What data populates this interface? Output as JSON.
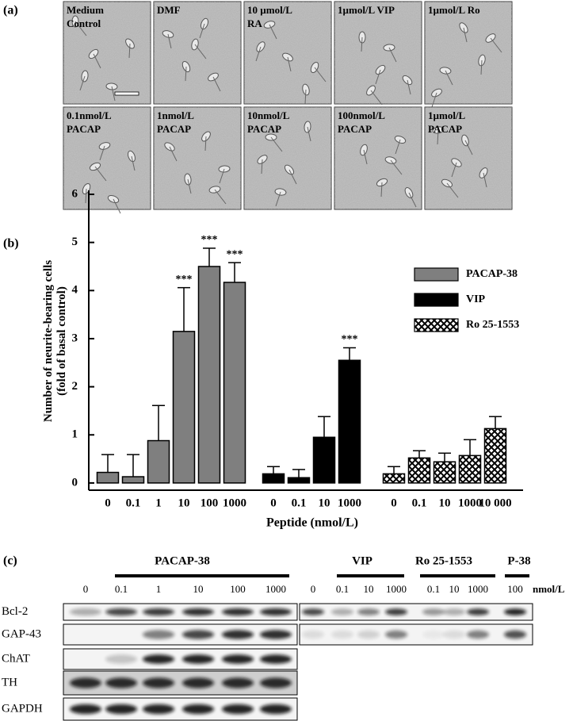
{
  "panel_a": {
    "label": "(a)",
    "tiles": [
      {
        "lines": [
          "Medium",
          "Control"
        ]
      },
      {
        "lines": [
          "DMF"
        ]
      },
      {
        "lines": [
          "10 µmol/L",
          "RA"
        ]
      },
      {
        "lines": [
          "1µmol/L VIP"
        ]
      },
      {
        "lines": [
          "1µmol/L Ro"
        ]
      },
      {
        "lines": [
          "0.1nmol/L",
          "PACAP"
        ]
      },
      {
        "lines": [
          "1nmol/L",
          "PACAP"
        ]
      },
      {
        "lines": [
          "10nmol/L",
          "PACAP"
        ]
      },
      {
        "lines": [
          "100nmol/L",
          "PACAP"
        ]
      },
      {
        "lines": [
          "1µmol/L",
          "PACAP"
        ]
      }
    ]
  },
  "chart_data": {
    "type": "bar",
    "label": "(b)",
    "y_label": [
      "Number of neurite-bearing cells",
      "(fold of basal control)"
    ],
    "x_label": "Peptide (nmol/L)",
    "ylim": [
      -0.15,
      6
    ],
    "yticks": [
      0,
      1,
      2,
      3,
      4,
      5,
      6
    ],
    "legend": "upper right",
    "series": [
      {
        "name": "PACAP-38",
        "color": "#7f7f7f",
        "pattern": "solid",
        "categories": [
          "0",
          "0.1",
          "1",
          "10",
          "100",
          "1000"
        ],
        "values": [
          0.22,
          0.13,
          0.88,
          3.15,
          4.5,
          4.17
        ],
        "errors": [
          0.37,
          0.46,
          0.73,
          0.91,
          0.38,
          0.41
        ],
        "annotations": [
          null,
          null,
          null,
          "***",
          "***",
          "***"
        ]
      },
      {
        "name": "VIP",
        "color": "#000000",
        "pattern": "solid",
        "categories": [
          "0",
          "0.1",
          "10",
          "1000"
        ],
        "values": [
          0.19,
          0.11,
          0.95,
          2.55
        ],
        "errors": [
          0.15,
          0.17,
          0.43,
          0.26
        ],
        "annotations": [
          null,
          null,
          null,
          "***"
        ]
      },
      {
        "name": "Ro 25-1553",
        "color": "#000000",
        "pattern": "crosshatch",
        "categories": [
          "0",
          "0.1",
          "10",
          "1000",
          "10 000"
        ],
        "values": [
          0.19,
          0.52,
          0.44,
          0.57,
          1.13
        ],
        "errors": [
          0.15,
          0.15,
          0.18,
          0.33,
          0.25
        ],
        "annotations": [
          null,
          null,
          null,
          null,
          null
        ]
      }
    ]
  },
  "panel_c": {
    "label": "(c)",
    "groups": [
      "PACAP-38",
      "VIP",
      "Ro 25-1553",
      "P-38"
    ],
    "left_lanes": [
      "0",
      "0.1",
      "1",
      "10",
      "100",
      "1000"
    ],
    "right_lanes": [
      "0",
      "0.1",
      "10",
      "1000",
      "0.1",
      "10",
      "1000",
      "100"
    ],
    "unit": "nmol/L",
    "rows": [
      "Bcl-2",
      "GAP-43",
      "ChAT",
      "TH",
      "GAPDH"
    ]
  }
}
